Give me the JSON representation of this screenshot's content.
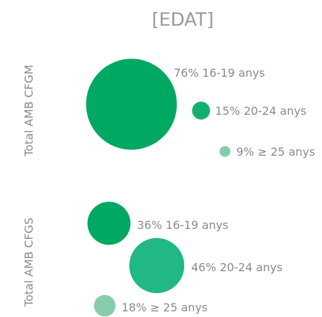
{
  "title": "[EDAT]",
  "chart_data": [
    {
      "type": "bubble",
      "label": "Total AMB CFGM",
      "categories": [
        "16-19 anys",
        "20-24 anys",
        "≥ 25 anys"
      ],
      "values": [
        76,
        15,
        9
      ],
      "value_labels": [
        "76%",
        "15%",
        "9%"
      ],
      "colors": [
        "#00a862",
        "#12b070",
        "#80cfa8"
      ]
    },
    {
      "type": "bubble",
      "label": "Total AMB CFGS",
      "categories": [
        "16-19 anys",
        "20-24 anys",
        "≥ 25 anys"
      ],
      "values": [
        36,
        46,
        18
      ],
      "value_labels": [
        "36%",
        "46%",
        "18%"
      ],
      "colors": [
        "#00a862",
        "#22b886",
        "#86cea9"
      ]
    }
  ]
}
